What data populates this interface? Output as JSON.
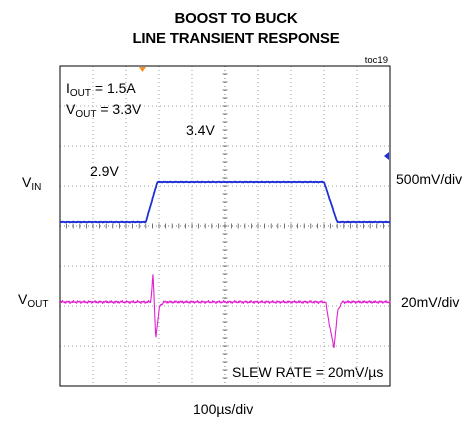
{
  "chart_data": {
    "type": "line",
    "title": [
      "BOOST TO BUCK",
      "LINE TRANSIENT RESPONSE"
    ],
    "tag": "toc19",
    "xlabel": "100µs/div",
    "grid": true,
    "conditions": [
      {
        "main": "I",
        "sub": "OUT",
        "rest": " = 1.5A"
      },
      {
        "main": "V",
        "sub": "OUT",
        "rest": " = 3.3V"
      }
    ],
    "annotations": [
      "3.4V",
      "2.9V",
      "SLEW RATE = 20mV/µs"
    ],
    "x_divisions": 10,
    "y_divisions": 8,
    "series": [
      {
        "label_main": "V",
        "label_sub": "IN",
        "scale": "500mV/div",
        "color": "#1f2fd6",
        "points": [
          [
            0,
            2.9
          ],
          [
            2.6,
            2.9
          ],
          [
            2.95,
            3.4
          ],
          [
            8.0,
            3.4
          ],
          [
            8.4,
            2.9
          ],
          [
            10,
            2.9
          ]
        ]
      },
      {
        "label_main": "V",
        "label_sub": "OUT",
        "scale": "20mV/div",
        "color": "#e020d0",
        "points": [
          [
            0,
            3.3
          ],
          [
            2.75,
            3.3
          ],
          [
            2.82,
            3.314
          ],
          [
            2.9,
            3.282
          ],
          [
            3.02,
            3.298
          ],
          [
            3.15,
            3.3
          ],
          [
            8.05,
            3.3
          ],
          [
            8.15,
            3.29
          ],
          [
            8.3,
            3.277
          ],
          [
            8.42,
            3.296
          ],
          [
            8.55,
            3.3
          ],
          [
            10,
            3.3
          ]
        ]
      }
    ]
  }
}
